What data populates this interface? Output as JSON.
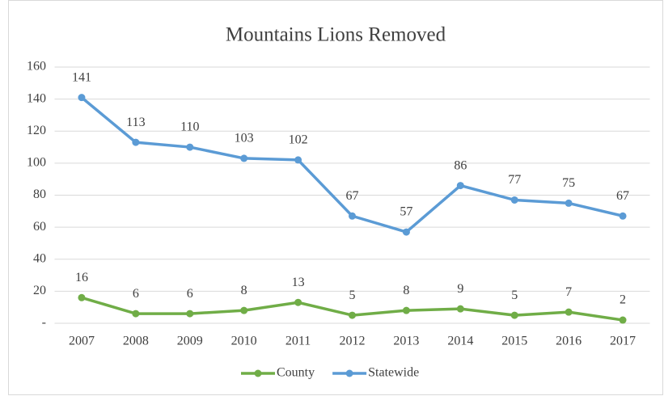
{
  "chart_data": {
    "type": "line",
    "title": "Mountains Lions Removed",
    "categories": [
      "2007",
      "2008",
      "2009",
      "2010",
      "2011",
      "2012",
      "2013",
      "2014",
      "2015",
      "2016",
      "2017"
    ],
    "series": [
      {
        "name": "County",
        "color": "#70ad47",
        "values": [
          16,
          6,
          6,
          8,
          13,
          5,
          8,
          9,
          5,
          7,
          2
        ]
      },
      {
        "name": "Statewide",
        "color": "#5b9bd5",
        "values": [
          141,
          113,
          110,
          103,
          102,
          67,
          57,
          86,
          77,
          75,
          67
        ]
      }
    ],
    "ylim": [
      0,
      160
    ],
    "yticks": [
      {
        "value": 0,
        "label": "-"
      },
      20,
      40,
      60,
      80,
      100,
      120,
      140,
      160
    ],
    "grid": true,
    "legend": "bottom"
  }
}
